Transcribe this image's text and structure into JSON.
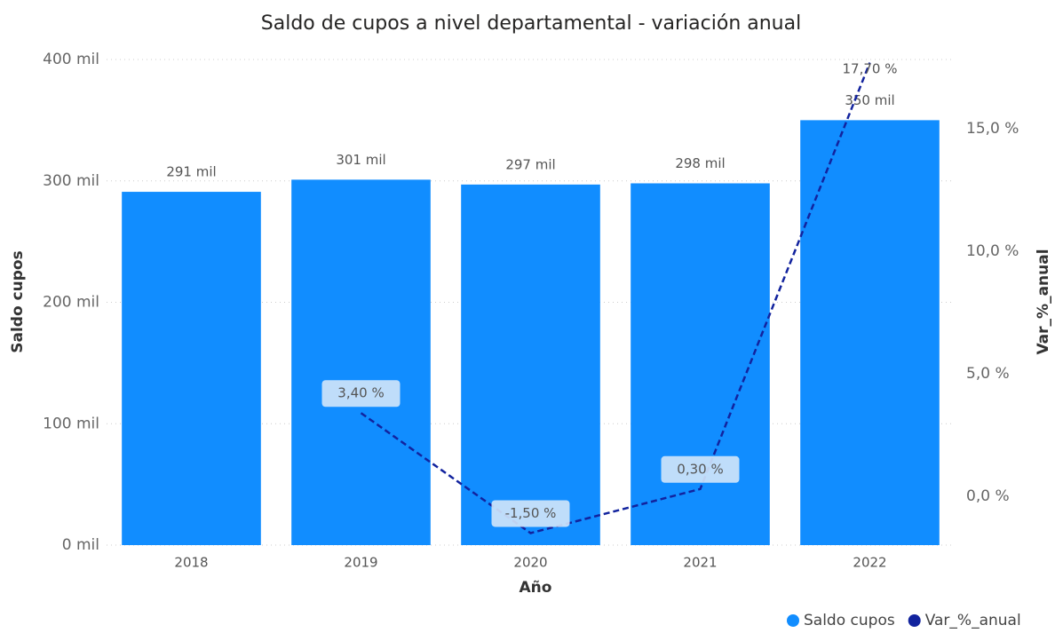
{
  "chart_data": {
    "type": "combo",
    "title": "Saldo de cupos a nivel departamental - variación anual",
    "x_label": "Año",
    "y_label": "Saldo cupos",
    "y2_label": "Var_%_anual",
    "categories": [
      "2018",
      "2019",
      "2020",
      "2021",
      "2022"
    ],
    "series": [
      {
        "name": "Saldo cupos",
        "type": "bar",
        "color": "#118dff",
        "values": [
          291000,
          301000,
          297000,
          298000,
          350000
        ],
        "value_labels": [
          "291 mil",
          "301 mil",
          "297 mil",
          "298 mil",
          "350 mil"
        ]
      },
      {
        "name": "Var_%_anual",
        "type": "line",
        "axis": "y2",
        "color": "#12239e",
        "dashed": true,
        "values": [
          null,
          3.4,
          -1.5,
          0.3,
          17.7
        ],
        "value_labels": [
          null,
          "3,40 %",
          "-1,50 %",
          "0,30 %",
          "17,70 %"
        ]
      }
    ],
    "ylim": [
      0,
      400000
    ],
    "yticks": [
      {
        "value": 0,
        "label": "0 mil"
      },
      {
        "value": 100000,
        "label": "100 mil"
      },
      {
        "value": 200000,
        "label": "200 mil"
      },
      {
        "value": 300000,
        "label": "300 mil"
      },
      {
        "value": 400000,
        "label": "400 mil"
      }
    ],
    "y2lim": [
      -1.99,
      17.83
    ],
    "y2ticks": [
      {
        "value": 0,
        "label": "0,0 %"
      },
      {
        "value": 5,
        "label": "5,0 %"
      },
      {
        "value": 10,
        "label": "10,0 %"
      },
      {
        "value": 15,
        "label": "15,0 %"
      }
    ],
    "grid": true,
    "legend": "bottom-right"
  }
}
